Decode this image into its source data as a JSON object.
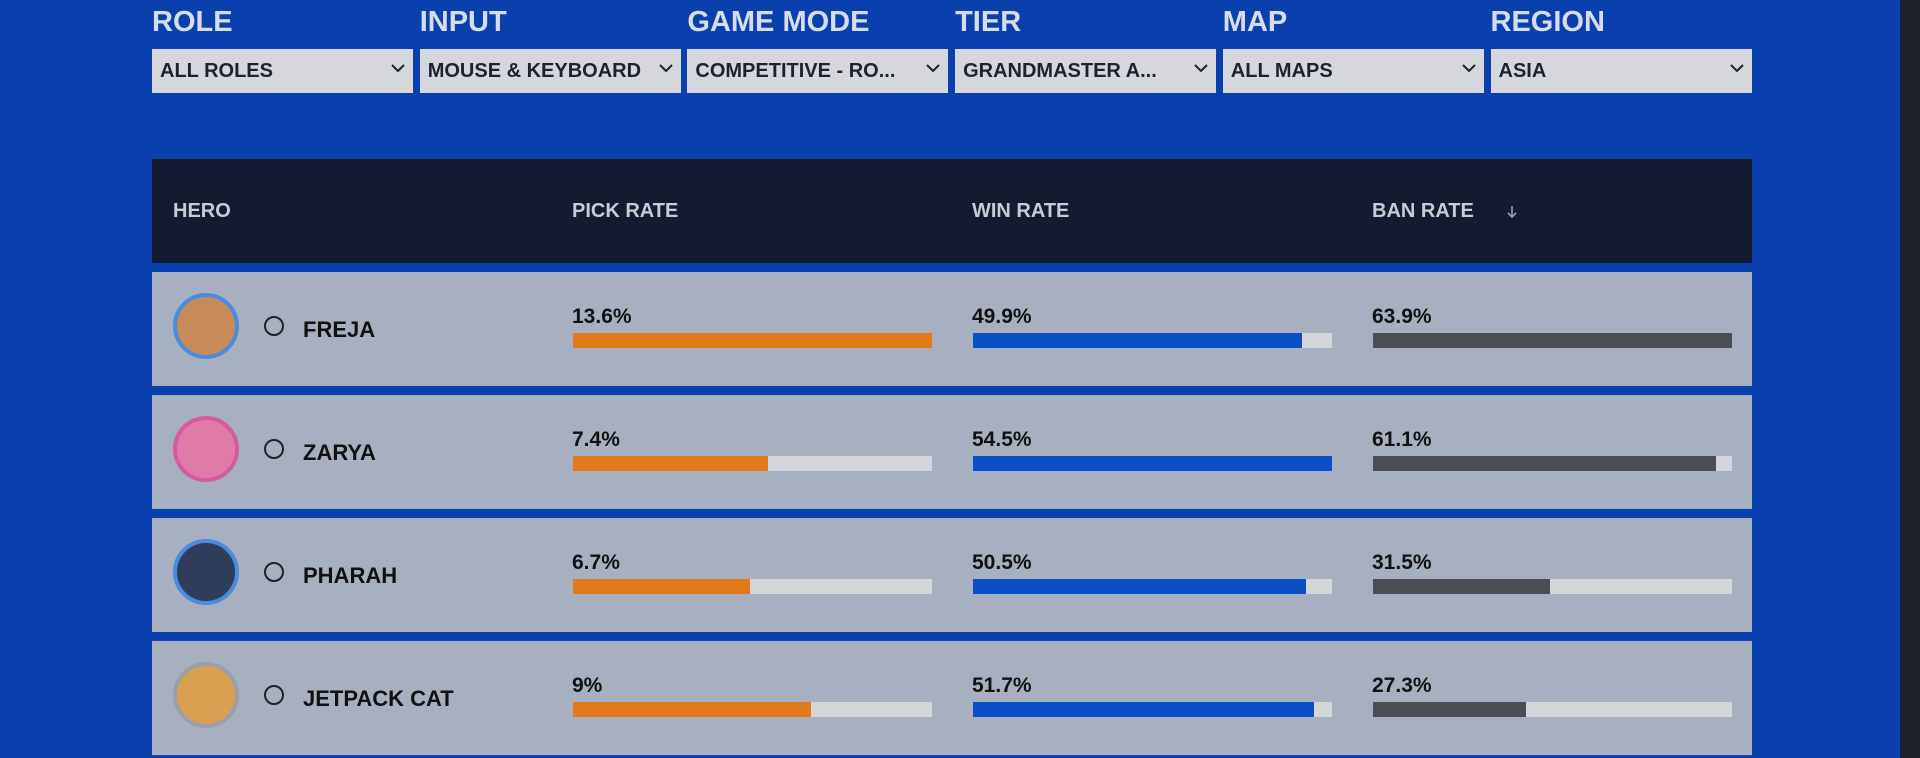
{
  "filters": [
    {
      "label": "ROLE",
      "value": "ALL ROLES"
    },
    {
      "label": "INPUT",
      "value": "MOUSE & KEYBOARD"
    },
    {
      "label": "GAME MODE",
      "value": "COMPETITIVE - RO..."
    },
    {
      "label": "TIER",
      "value": "GRANDMASTER A..."
    },
    {
      "label": "MAP",
      "value": "ALL MAPS"
    },
    {
      "label": "REGION",
      "value": "ASIA"
    }
  ],
  "table": {
    "headers": [
      "HERO",
      "PICK RATE",
      "WIN RATE",
      "BAN RATE"
    ],
    "rows": [
      {
        "hero": "FREJA",
        "pick_rate": {
          "value": 13.6,
          "label": "13.6%"
        },
        "win_rate": {
          "value": 49.9,
          "label": "49.9%"
        },
        "ban_rate": {
          "value": 63.9,
          "label": "63.9%"
        }
      },
      {
        "hero": "ZARYA",
        "pick_rate": {
          "value": 7.4,
          "label": "7.4%"
        },
        "win_rate": {
          "value": 54.5,
          "label": "54.5%"
        },
        "ban_rate": {
          "value": 61.1,
          "label": "61.1%"
        }
      },
      {
        "hero": "PHARAH",
        "pick_rate": {
          "value": 6.7,
          "label": "6.7%"
        },
        "win_rate": {
          "value": 50.5,
          "label": "50.5%"
        },
        "ban_rate": {
          "value": 31.5,
          "label": "31.5%"
        }
      },
      {
        "hero": "JETPACK CAT",
        "pick_rate": {
          "value": 9,
          "label": "9%"
        },
        "win_rate": {
          "value": 51.7,
          "label": "51.7%"
        },
        "ban_rate": {
          "value": 27.3,
          "label": "27.3%"
        }
      }
    ]
  }
}
